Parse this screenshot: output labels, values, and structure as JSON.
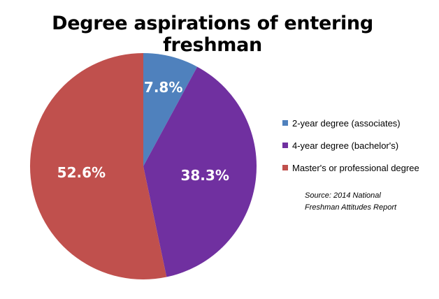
{
  "title": "Degree aspirations of entering freshman",
  "chart_data": {
    "type": "pie",
    "title": "Degree aspirations of entering freshman",
    "categories": [
      "2-year degree (associates)",
      "4-year degree (bachelor's)",
      "Master's or professional degree"
    ],
    "values": [
      7.8,
      38.3,
      52.6
    ],
    "labels": [
      "7.8%",
      "38.3%",
      "52.6%"
    ],
    "colors": [
      "#4f81bd",
      "#7030a0",
      "#c0504d"
    ],
    "legend": "right"
  },
  "source": {
    "line1": "Source:  2014 National",
    "line2": "Freshman  Attitudes  Report"
  }
}
